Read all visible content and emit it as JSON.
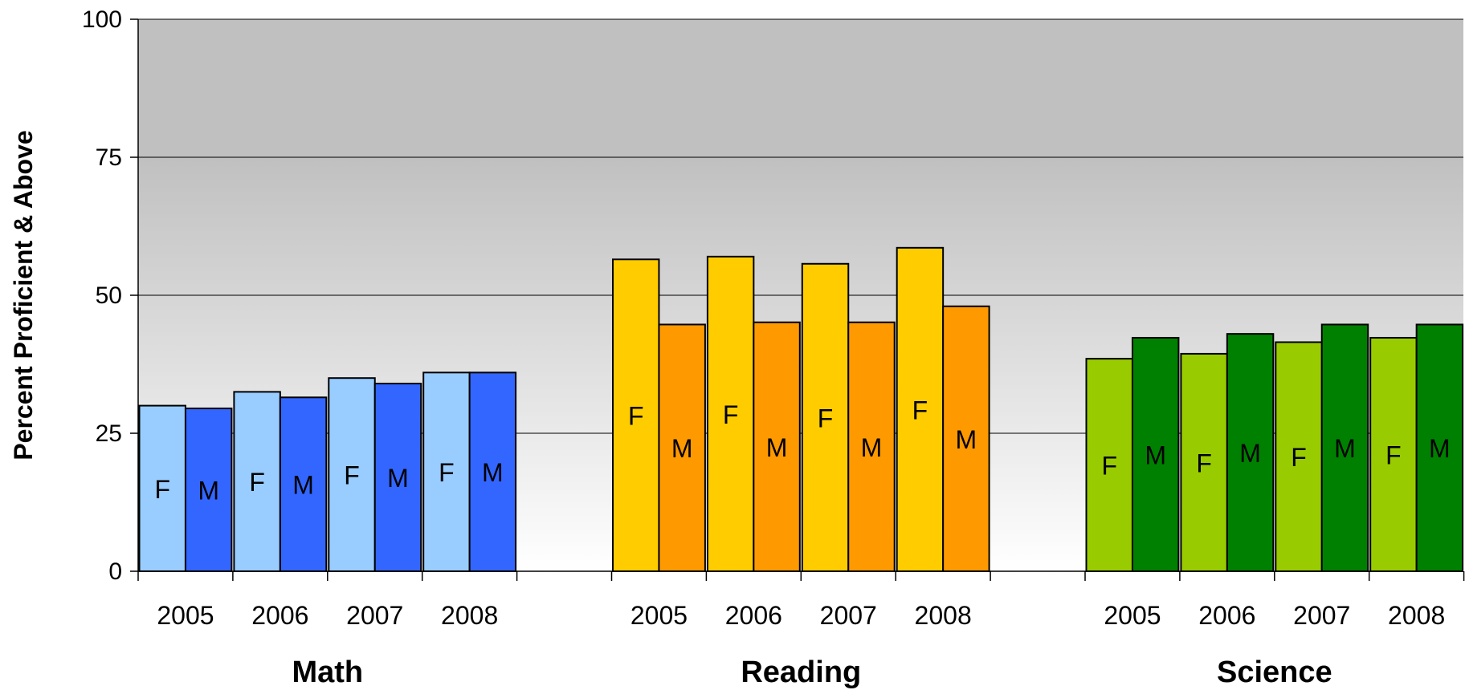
{
  "chart_data": {
    "type": "bar",
    "ylabel": "Percent Proficient & Above",
    "ylim": [
      0,
      100
    ],
    "yticks": [
      "0",
      "25",
      "50",
      "75",
      "100"
    ],
    "grid": true,
    "groups": [
      {
        "name": "Math",
        "years": [
          "2005",
          "2006",
          "2007",
          "2008"
        ],
        "series": [
          {
            "label": "F",
            "color": "#99ccff",
            "values": [
              30,
              32.5,
              35,
              36
            ]
          },
          {
            "label": "M",
            "color": "#3366ff",
            "values": [
              29.5,
              31.5,
              34,
              36
            ]
          }
        ]
      },
      {
        "name": "Reading",
        "years": [
          "2005",
          "2006",
          "2007",
          "2008"
        ],
        "series": [
          {
            "label": "F",
            "color": "#ffcc00",
            "values": [
              56.5,
              57,
              55.7,
              58.6
            ]
          },
          {
            "label": "M",
            "color": "#ff9900",
            "values": [
              44.7,
              45.1,
              45.1,
              48
            ]
          }
        ]
      },
      {
        "name": "Science",
        "years": [
          "2005",
          "2006",
          "2007",
          "2008"
        ],
        "series": [
          {
            "label": "F",
            "color": "#99cc00",
            "values": [
              38.5,
              39.4,
              41.5,
              42.3
            ]
          },
          {
            "label": "M",
            "color": "#008000",
            "values": [
              42.3,
              43,
              44.7,
              44.7
            ]
          }
        ]
      }
    ]
  }
}
